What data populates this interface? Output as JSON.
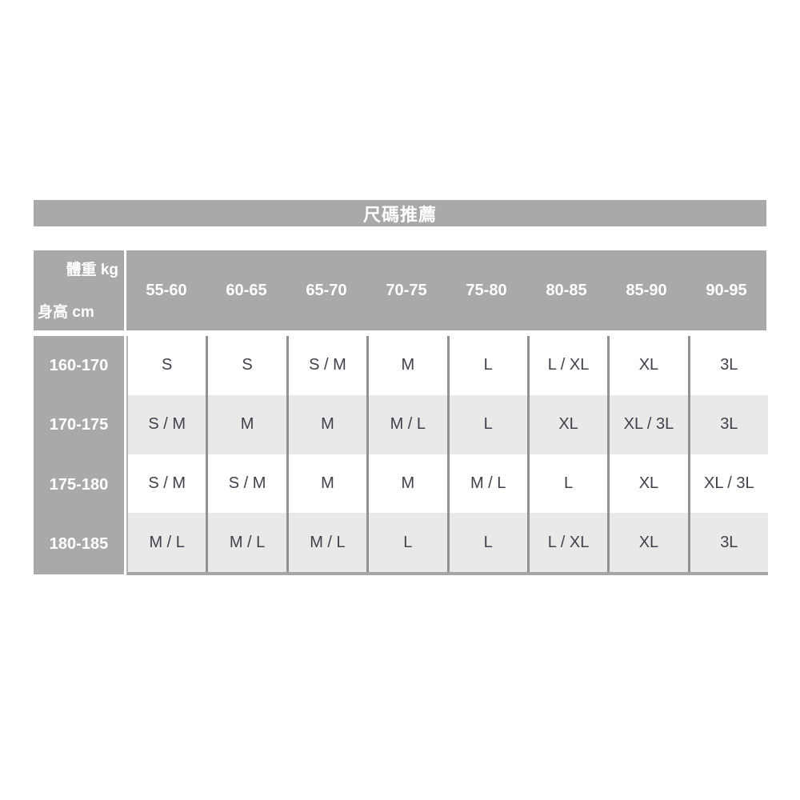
{
  "title": "尺碼推薦",
  "corner": {
    "weight_label": "體重 kg",
    "height_label": "身高 cm"
  },
  "chart_data": {
    "type": "table",
    "title": "尺碼推薦",
    "col_axis_label": "體重 kg",
    "row_axis_label": "身高 cm",
    "columns": [
      "55-60",
      "60-65",
      "65-70",
      "70-75",
      "75-80",
      "80-85",
      "85-90",
      "90-95"
    ],
    "rows": [
      {
        "height_range": "160-170",
        "sizes": [
          "S",
          "S",
          "S / M",
          "M",
          "L",
          "L / XL",
          "XL",
          "3L"
        ]
      },
      {
        "height_range": "170-175",
        "sizes": [
          "S / M",
          "M",
          "M",
          "M / L",
          "L",
          "XL",
          "XL / 3L",
          "3L"
        ]
      },
      {
        "height_range": "175-180",
        "sizes": [
          "S / M",
          "S / M",
          "M",
          "M",
          "M / L",
          "L",
          "XL",
          "XL / 3L"
        ]
      },
      {
        "height_range": "180-185",
        "sizes": [
          "M / L",
          "M / L",
          "M / L",
          "L",
          "L",
          "L / XL",
          "XL",
          "3L"
        ]
      }
    ]
  },
  "colors": {
    "header_gray": "#a9a9a9",
    "row_alt_gray": "#e9e9e9",
    "divider_gray": "#919191",
    "bottom_border_gray": "#a6a6a6",
    "text_dark": "#41414c",
    "text_white": "#ffffff"
  }
}
